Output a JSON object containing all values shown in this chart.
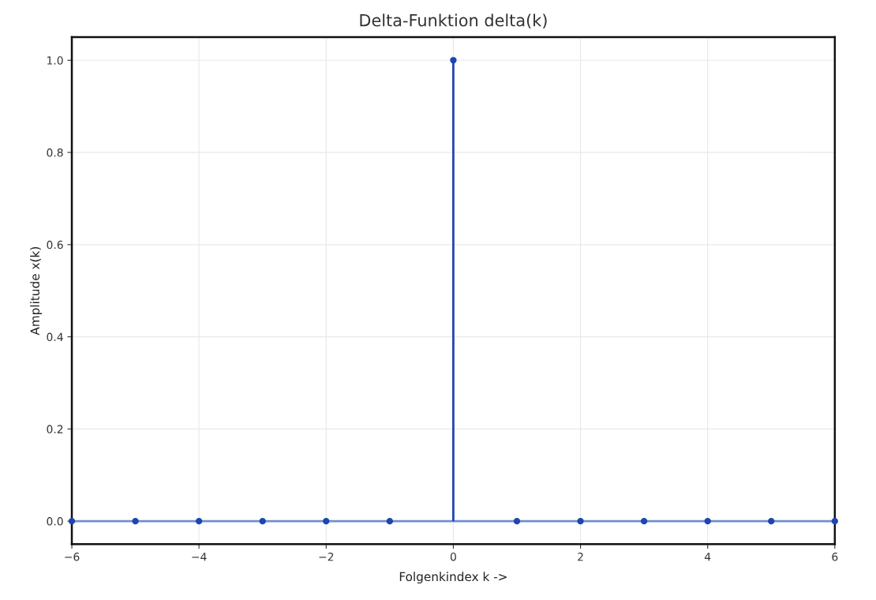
{
  "chart_data": {
    "type": "lollipop",
    "title": "Delta-Funktion delta(k)",
    "xlabel": "Folgenkindex k ->",
    "ylabel": "Amplitude x(k)",
    "x": [
      -6,
      -5,
      -4,
      -3,
      -2,
      -1,
      0,
      1,
      2,
      3,
      4,
      5,
      6
    ],
    "series": [
      {
        "color": "#1f45b0",
        "values": [
          0,
          0,
          0,
          0,
          0,
          0,
          1,
          0,
          0,
          0,
          0,
          0,
          0
        ]
      }
    ],
    "marker": "circle",
    "ref_lines": [
      {
        "axis": "y",
        "value": 0,
        "color": "#6f8fd0"
      }
    ],
    "xlim": [
      -6,
      6
    ],
    "ylim": [
      -0.05,
      1.05
    ],
    "xticks": [
      {
        "value": -6,
        "label": "−6"
      },
      {
        "value": -4,
        "label": "−4"
      },
      {
        "value": -2,
        "label": "−2"
      },
      0,
      2,
      4,
      6
    ],
    "yticks": [
      {
        "value": 0,
        "label": "0.0"
      },
      {
        "value": 0.2,
        "label": "0.2"
      },
      {
        "value": 0.4,
        "label": "0.4"
      },
      {
        "value": 0.6,
        "label": "0.6"
      },
      {
        "value": 0.8,
        "label": "0.8"
      },
      {
        "value": 1,
        "label": "1.0"
      }
    ],
    "grid": true,
    "legend": false
  }
}
